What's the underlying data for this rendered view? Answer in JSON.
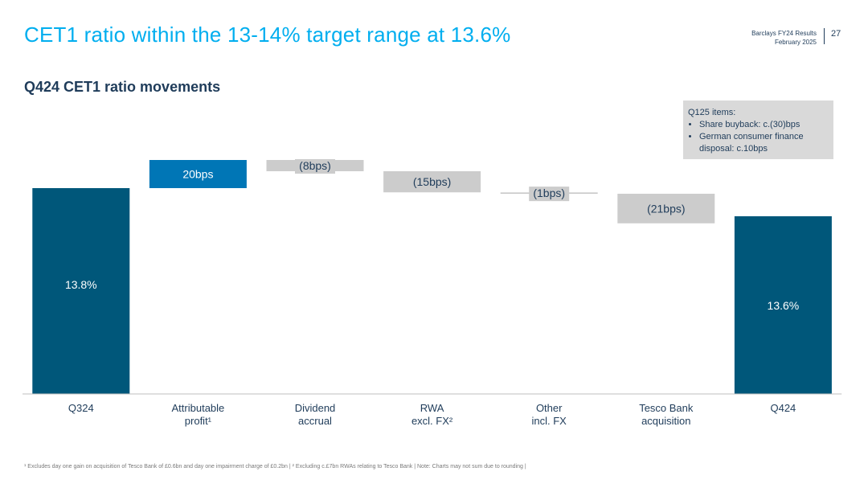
{
  "header": {
    "title": "CET1 ratio within the 13-14% target range at 13.6%",
    "subtitle": "Q424 CET1 ratio movements",
    "report_name": "Barclays FY24 Results",
    "report_date": "February 2025",
    "page_number": "27"
  },
  "note": {
    "heading": "Q125 items:",
    "items": [
      "Share buyback: c.(30)bps",
      "German consumer finance disposal: c.10bps"
    ]
  },
  "footnote": "¹ Excludes day one gain on acquisition of Tesco Bank of £0.6bn and day one impairment charge of £0.2bn | ² Excluding c.£7bn RWAs relating to Tesco Bank | Note: Charts may not sum due to rounding |",
  "colors": {
    "title": "#00aeef",
    "text": "#1f3c5a",
    "total_bar": "#00577a",
    "increase_bar": "#0076b6",
    "decrease_bar": "#cccccc",
    "note_bg": "#d9d9d9"
  },
  "chart_data": {
    "type": "bar",
    "subtype": "waterfall",
    "unit": "bps",
    "categories": [
      "Q324",
      "Attributable profit¹",
      "Dividend accrual",
      "RWA excl. FX²",
      "Other incl. FX",
      "Tesco Bank acquisition",
      "Q424"
    ],
    "category_lines": [
      [
        "Q324"
      ],
      [
        "Attributable",
        "profit¹"
      ],
      [
        "Dividend",
        "accrual"
      ],
      [
        "RWA",
        "excl. FX²"
      ],
      [
        "Other",
        "incl. FX"
      ],
      [
        "Tesco Bank",
        "acquisition"
      ],
      [
        "Q424"
      ]
    ],
    "values_bps": [
      1380,
      20,
      -8,
      -15,
      -1,
      -21,
      1360
    ],
    "kinds": [
      "total",
      "increase",
      "decrease",
      "decrease",
      "decrease",
      "decrease",
      "total"
    ],
    "labels": [
      "13.8%",
      "20bps",
      "(8bps)",
      "(15bps)",
      "(1bps)",
      "(21bps)",
      "13.6%"
    ],
    "baseline": "bottom axis line",
    "grid": false,
    "legend": "none"
  }
}
